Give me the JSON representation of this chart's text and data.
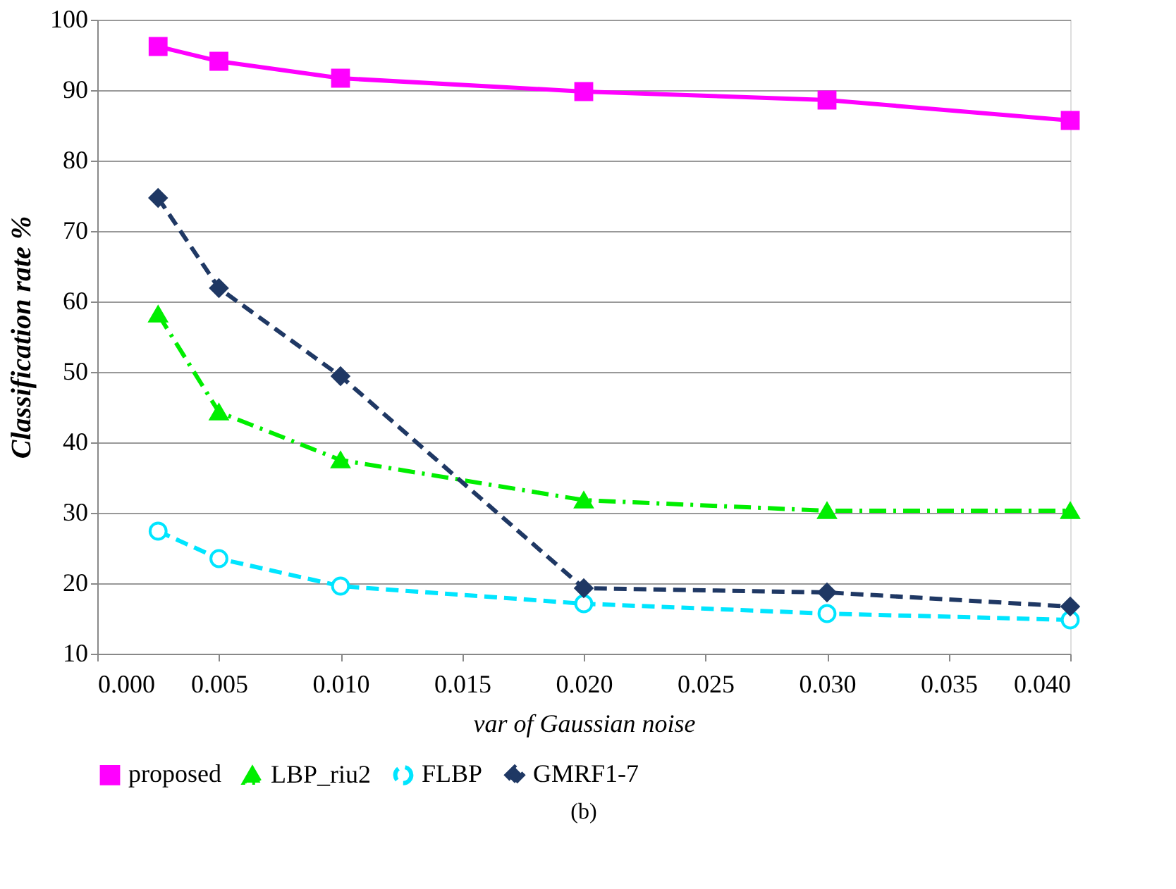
{
  "chart_data": {
    "type": "line",
    "xlabel": "var of Gaussian noise",
    "ylabel": "Classification rate %",
    "x": [
      0.0025,
      0.005,
      0.01,
      0.02,
      0.03,
      0.04
    ],
    "series": [
      {
        "name": "proposed",
        "color": "#ff00ff",
        "marker": "square",
        "line_style": "solid",
        "values": [
          96.2,
          94.1,
          91.7,
          89.8,
          88.6,
          85.7
        ]
      },
      {
        "name": "LBP_riu2",
        "color": "#00ee00",
        "marker": "triangle",
        "line_style": "dashdot",
        "values": [
          58.2,
          44.3,
          37.5,
          31.8,
          30.3,
          30.3
        ]
      },
      {
        "name": "FLBP",
        "color": "#00e5ff",
        "marker": "circle",
        "line_style": "dashed",
        "values": [
          27.4,
          23.5,
          19.6,
          17.1,
          15.7,
          14.8
        ]
      },
      {
        "name": "GMRF1-7",
        "color": "#1f3864",
        "marker": "diamond",
        "line_style": "dashed",
        "values": [
          74.7,
          61.9,
          49.4,
          19.3,
          18.7,
          16.7
        ]
      }
    ],
    "xlim": [
      0.0,
      0.04
    ],
    "xticks": [
      {
        "value": 0,
        "label": "0.000"
      },
      {
        "value": 0.005,
        "label": "0.005"
      },
      {
        "value": 0.01,
        "label": "0.010"
      },
      {
        "value": 0.015,
        "label": "0.015"
      },
      {
        "value": 0.02,
        "label": "0.020"
      },
      {
        "value": 0.025,
        "label": "0.025"
      },
      {
        "value": 0.03,
        "label": "0.030"
      },
      {
        "value": 0.035,
        "label": "0.035"
      },
      {
        "value": 0.04,
        "label": "0.040"
      }
    ],
    "ylim": [
      10,
      100
    ],
    "yticks": [
      10,
      20,
      30,
      40,
      50,
      60,
      70,
      80,
      90,
      100
    ],
    "grid": "y",
    "legend": "bottom",
    "annotations": [
      "(b)"
    ]
  }
}
